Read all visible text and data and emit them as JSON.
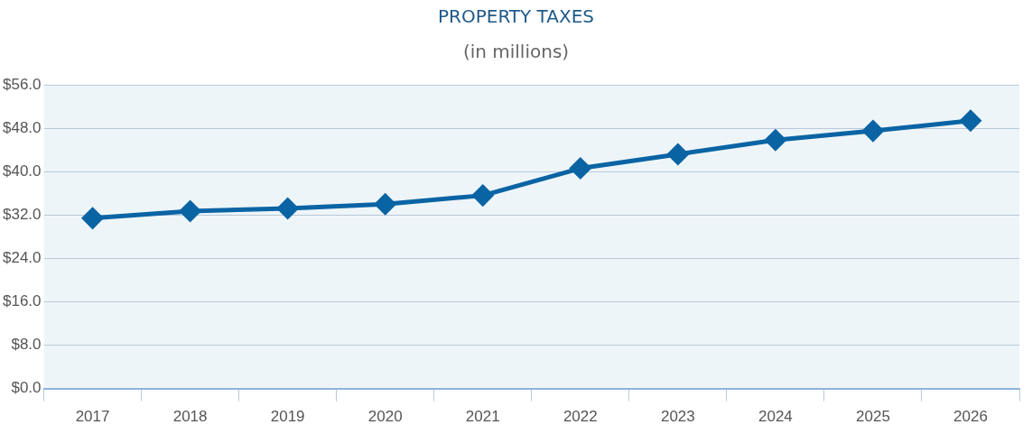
{
  "chart_data": {
    "type": "line",
    "title": "PROPERTY TAXES",
    "subtitle": "(in millions)",
    "categories": [
      "2017",
      "2018",
      "2019",
      "2020",
      "2021",
      "2022",
      "2023",
      "2024",
      "2025",
      "2026"
    ],
    "series": [
      {
        "color": "#0a64a4",
        "values": [
          31.4,
          32.7,
          33.2,
          34.0,
          35.6,
          40.6,
          43.2,
          45.8,
          47.5,
          49.4
        ]
      }
    ],
    "ylim": [
      0,
      56
    ],
    "yticks": [
      {
        "value": 0,
        "label": "$0.0"
      },
      {
        "value": 8,
        "label": "$8.0"
      },
      {
        "value": 16,
        "label": "$16.0"
      },
      {
        "value": 24,
        "label": "$24.0"
      },
      {
        "value": 32,
        "label": "$32.0"
      },
      {
        "value": 40,
        "label": "$40.0"
      },
      {
        "value": 48,
        "label": "$48.0"
      },
      {
        "value": 56,
        "label": "$56.0"
      }
    ],
    "grid": "y",
    "legend": false,
    "marker": "diamond",
    "line_style": "solid"
  }
}
